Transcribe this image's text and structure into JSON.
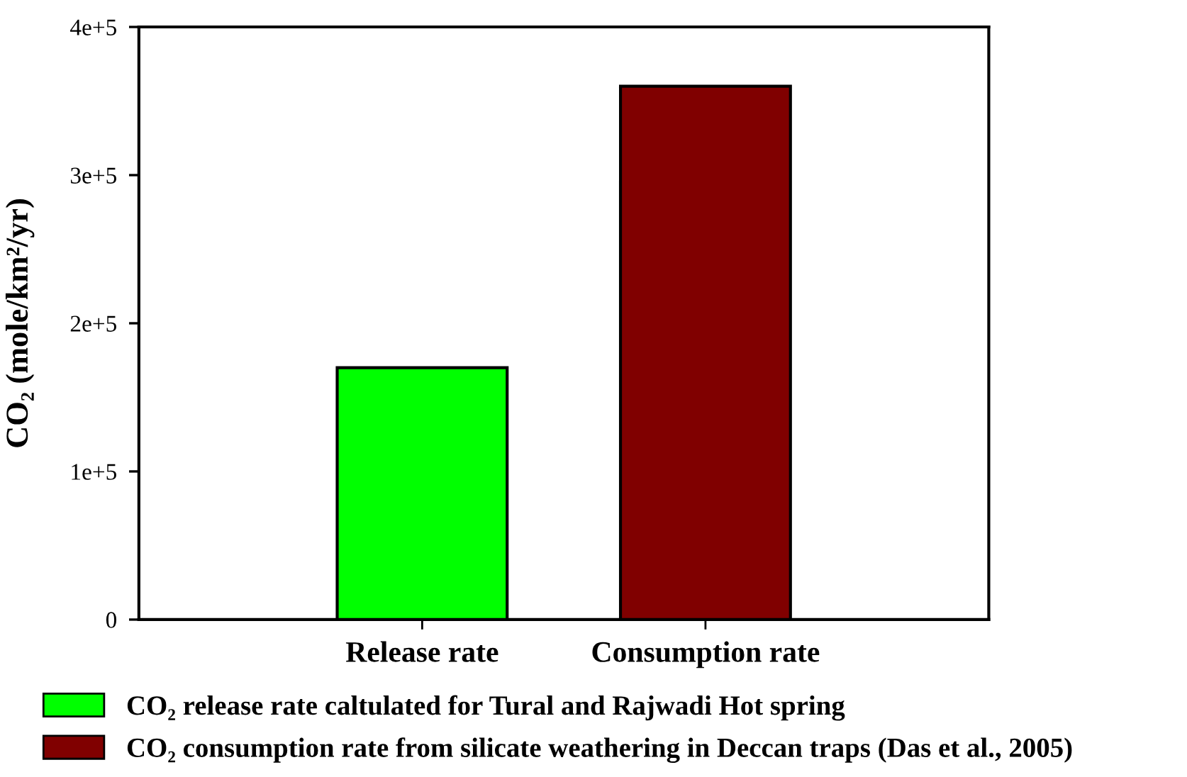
{
  "chart_data": {
    "type": "bar",
    "ylabel": "CO₂ (mole/km²/yr)",
    "categories": [
      "Release rate",
      "Consumption rate"
    ],
    "series": [
      {
        "name": "CO₂ release rate caltulated for Tural and Rajwadi Hot spring",
        "color": "#00ff00",
        "values": [
          170000,
          null
        ]
      },
      {
        "name": "CO₂ consumption rate from silicate weathering in Deccan traps (Das et al., 2005)",
        "color": "#800000",
        "values": [
          null,
          360000
        ]
      }
    ],
    "ylim": [
      0,
      400000
    ],
    "yticks": [
      0,
      {
        "value": 100000,
        "label": "1e+5"
      },
      {
        "value": 200000,
        "label": "2e+5"
      },
      {
        "value": 300000,
        "label": "3e+5"
      },
      {
        "value": 400000,
        "label": "4e+5"
      }
    ],
    "legend": "bottom"
  }
}
